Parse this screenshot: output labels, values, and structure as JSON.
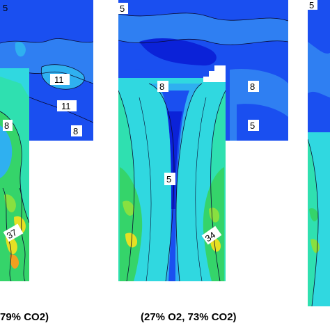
{
  "colors": {
    "deep": "#0b22d8",
    "blue": "#1a4ff0",
    "mid": "#2f7ff2",
    "sky": "#2fb0f0",
    "cyan": "#30d8e0",
    "aqua": "#2fe0b0",
    "green": "#35d46a",
    "lime": "#88e040",
    "yellow": "#e6e024",
    "orange": "#f0a020",
    "contour": "#0a0a30",
    "label_bg": "#ffffff"
  },
  "panels": [
    {
      "id": "left",
      "caption": "79% CO2)",
      "labels": [
        "5",
        "11",
        "11",
        "8",
        "8",
        "37"
      ]
    },
    {
      "id": "middle",
      "caption": "(27% O2, 73% CO2)",
      "labels": [
        "5",
        "8",
        "8",
        "5",
        "5",
        "34"
      ]
    },
    {
      "id": "right",
      "caption": "",
      "labels": [
        "5"
      ]
    }
  ]
}
